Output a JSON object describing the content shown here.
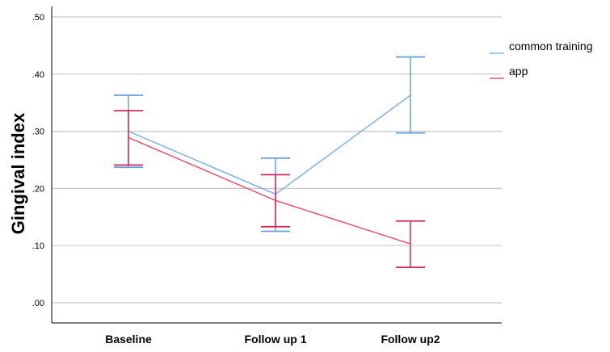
{
  "chart_data": {
    "type": "line",
    "title": "",
    "xlabel": "",
    "ylabel": "Gingival index",
    "categories": [
      "Baseline",
      "Follow up 1",
      "Follow up2"
    ],
    "ylim": [
      0,
      0.5
    ],
    "yticks": [
      0.0,
      0.1,
      0.2,
      0.3,
      0.4,
      0.5
    ],
    "ytick_labels": [
      ".00",
      ".10",
      ".20",
      ".30",
      ".40",
      ".50"
    ],
    "grid": "horizontal",
    "legend_position": "right",
    "error_bars": true,
    "series": [
      {
        "name": "common training",
        "color": "#7fb2e5",
        "errorbar_color": "#6a9fe0",
        "values": [
          0.3,
          0.19,
          0.363
        ],
        "lower": [
          0.237,
          0.125,
          0.297
        ],
        "upper": [
          0.363,
          0.253,
          0.43
        ]
      },
      {
        "name": "app",
        "color": "#e8516f",
        "errorbar_color": "#d4285a",
        "values": [
          0.289,
          0.179,
          0.103
        ],
        "lower": [
          0.241,
          0.133,
          0.062
        ],
        "upper": [
          0.336,
          0.224,
          0.143
        ]
      }
    ]
  }
}
